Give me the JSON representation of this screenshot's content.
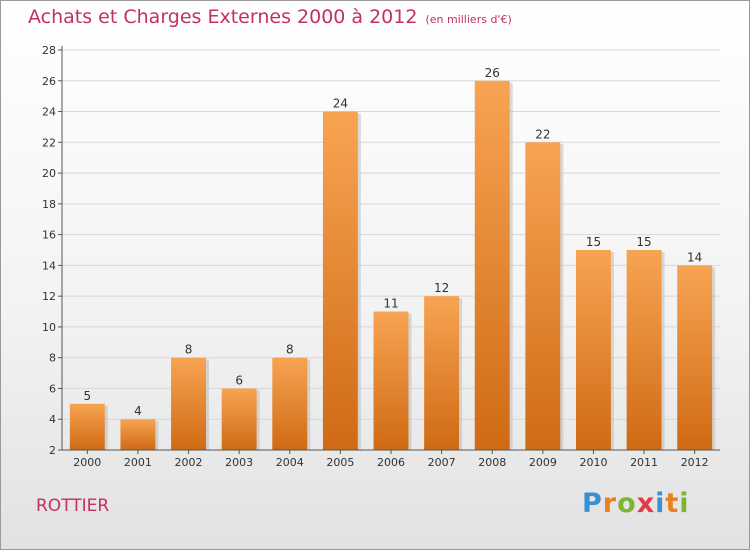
{
  "title": "Achats et Charges Externes 2000 à 2012",
  "unit": "(en milliers d'€)",
  "commune": "ROTTIER",
  "logo": {
    "letters": [
      "P",
      "r",
      "o",
      "x",
      "i",
      "t",
      "i"
    ],
    "colors": [
      "#3a8fd0",
      "#e8821e",
      "#7ab632",
      "#e23a4a",
      "#3a8fd0",
      "#e8821e",
      "#7ab632"
    ]
  },
  "colors": {
    "title": "#c43060",
    "bar_top": "#f7a452",
    "bar_bottom": "#d06a14",
    "axis": "#555555",
    "grid": "#d8d8d8"
  },
  "chart_data": {
    "type": "bar",
    "categories": [
      "2000",
      "2001",
      "2002",
      "2003",
      "2004",
      "2005",
      "2006",
      "2007",
      "2008",
      "2009",
      "2010",
      "2011",
      "2012"
    ],
    "values": [
      5,
      4,
      8,
      6,
      8,
      24,
      11,
      12,
      26,
      22,
      15,
      15,
      14
    ],
    "ylim": [
      2,
      28
    ],
    "yticks": [
      2,
      4,
      6,
      8,
      10,
      12,
      14,
      16,
      18,
      20,
      22,
      24,
      26,
      28
    ],
    "grid": true,
    "xlabel": "",
    "ylabel": ""
  }
}
